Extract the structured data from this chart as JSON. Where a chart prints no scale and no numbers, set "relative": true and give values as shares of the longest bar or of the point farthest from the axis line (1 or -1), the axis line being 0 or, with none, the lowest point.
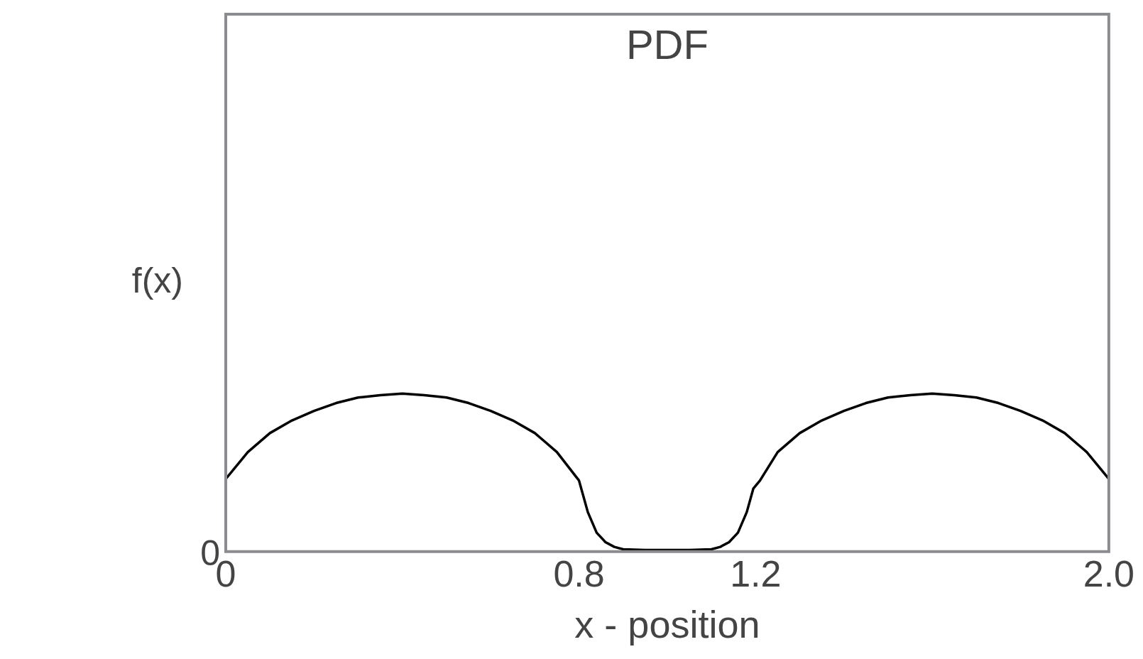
{
  "chart_data": {
    "type": "line",
    "title": "PDF",
    "xlabel": "x - position",
    "ylabel": "f(x)",
    "relative": true,
    "xlim": [
      0,
      2
    ],
    "xticks": [
      0,
      0.8,
      1.2,
      {
        "value": 2,
        "label": "2.0"
      }
    ],
    "annotations": [
      "0"
    ],
    "grid": false,
    "legend": false,
    "marker": "none",
    "line_style": "solid",
    "series": [
      {
        "color": "#000000",
        "x": [
          0,
          0.05,
          0.1,
          0.15,
          0.2,
          0.25,
          0.3,
          0.35,
          0.4,
          0.45,
          0.5,
          0.55,
          0.6,
          0.65,
          0.7,
          0.75,
          0.8,
          0.805,
          0.82,
          0.84,
          0.86,
          0.88,
          0.9,
          0.95,
          1.0,
          1.05,
          1.1,
          1.12,
          1.14,
          1.16,
          1.18,
          1.195,
          1.21,
          1.25,
          1.3,
          1.35,
          1.4,
          1.45,
          1.5,
          1.55,
          1.6,
          1.65,
          1.7,
          1.75,
          1.8,
          1.85,
          1.9,
          1.95,
          2.0
        ],
        "values": [
          0.46,
          0.63,
          0.75,
          0.83,
          0.89,
          0.94,
          0.975,
          0.99,
          1,
          0.99,
          0.975,
          0.94,
          0.89,
          0.83,
          0.75,
          0.63,
          0.45,
          0.4,
          0.25,
          0.12,
          0.06,
          0.03,
          0.015,
          0.01,
          0.01,
          0.01,
          0.015,
          0.03,
          0.06,
          0.12,
          0.25,
          0.4,
          0.45,
          0.63,
          0.75,
          0.83,
          0.89,
          0.94,
          0.975,
          0.99,
          1,
          0.99,
          0.975,
          0.94,
          0.89,
          0.83,
          0.75,
          0.63,
          0.46
        ]
      }
    ]
  }
}
